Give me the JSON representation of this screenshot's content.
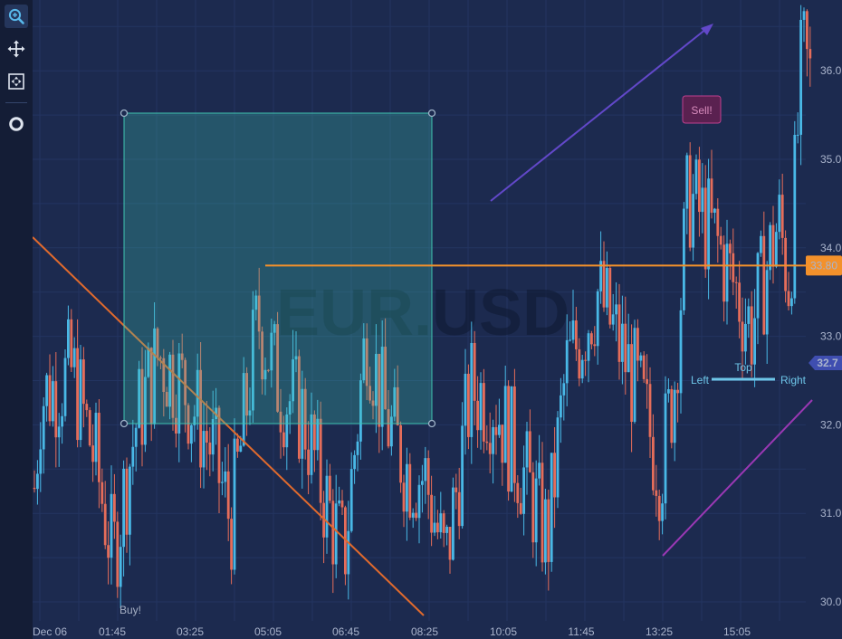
{
  "chart_data": {
    "type": "candlestick",
    "title": "EUR.USD",
    "x_labels": [
      "Dec 06",
      "01:45",
      "03:25",
      "05:05",
      "06:45",
      "08:25",
      "10:05",
      "11:45",
      "13:25",
      "15:05"
    ],
    "y_ticks": [
      "30.0",
      "31.0",
      "32.0",
      "33.0",
      "34.0",
      "35.0",
      "36.0"
    ],
    "ylim": [
      29.8,
      36.7
    ],
    "price_line": {
      "value": 33.8,
      "label": "33.80"
    },
    "last_marker": {
      "value": 32.7,
      "label": "32.7"
    },
    "annotations": {
      "buy": "Buy!",
      "sell": "Sell!"
    },
    "box_labels": {
      "top": "Top",
      "left": "Left",
      "right": "Right"
    },
    "colors": {
      "up": "#49b8e6",
      "down": "#e56d5a",
      "price_line": "#f3912b",
      "box": "#3ec4b0",
      "arrow": "#6248c9",
      "trend_down": "#e06a2d",
      "trend_up": "#9a38b4"
    }
  },
  "toolbar": {
    "icons": [
      "zoom-icon",
      "pan-icon",
      "zoom-extents-icon",
      "rollover-icon"
    ]
  }
}
